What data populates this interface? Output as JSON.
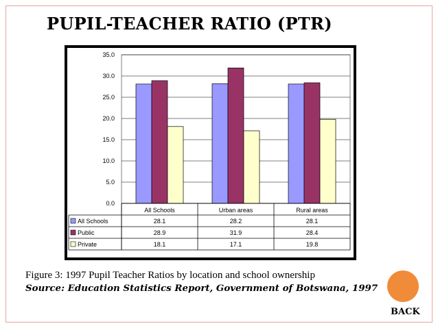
{
  "slide": {
    "title": "PUPIL-TEACHER RATIO (PTR)",
    "caption": "Figure 3: 1997 Pupil Teacher Ratios by location and school ownership",
    "source": "Source: Education Statistics Report, Government of Botswana, 1997",
    "back_label": "BACK",
    "colors": {
      "frame": "#e2a79e",
      "accent_dot": "#f08b3a"
    }
  },
  "chart_data": {
    "type": "bar",
    "title": "",
    "xlabel": "",
    "ylabel": "",
    "categories": [
      "All Schools",
      "Urban areas",
      "Rural areas"
    ],
    "series": [
      {
        "name": "All Schools",
        "values": [
          28.1,
          28.2,
          28.1
        ],
        "labels": [
          "28.1",
          "28.2",
          "28.1"
        ],
        "color": "#9999ff"
      },
      {
        "name": "Public",
        "values": [
          28.9,
          31.9,
          28.4
        ],
        "labels": [
          "28.9",
          "31.9",
          "28.4"
        ],
        "color": "#993366"
      },
      {
        "name": "Private",
        "values": [
          18.1,
          17.1,
          19.8
        ],
        "labels": [
          "18.1",
          "17.1",
          "19.8"
        ],
        "color": "#ffffcc"
      }
    ],
    "yticks": [
      "0.0",
      "5.0",
      "10.0",
      "15.0",
      "20.0",
      "25.0",
      "30.0",
      "35.0"
    ],
    "ylim": [
      0,
      35
    ],
    "grid": true,
    "legend": "data-table"
  }
}
